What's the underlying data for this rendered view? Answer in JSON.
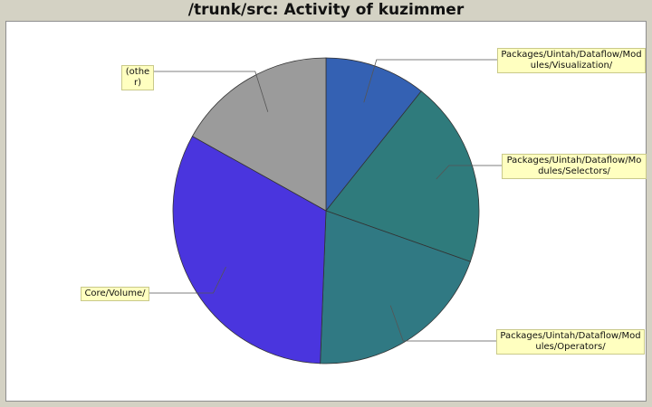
{
  "chart_data": {
    "type": "pie",
    "title": "/trunk/src: Activity of kuzimmer",
    "slices": [
      {
        "label": "Packages/Uintah/Dataflow/Modules/Visualization/",
        "value": 10.7,
        "color": "#3461b3"
      },
      {
        "label": "Packages/Uintah/Dataflow/Modules/Selectors/",
        "value": 19.7,
        "color": "#2f7b7c"
      },
      {
        "label": "Packages/Uintah/Dataflow/Modules/Operators/",
        "value": 20.2,
        "color": "#307983"
      },
      {
        "label": "Core/Volume/",
        "value": 32.5,
        "color": "#4a35de"
      },
      {
        "label": "(other)",
        "value": 16.9,
        "color": "#9b9b9b"
      }
    ]
  }
}
